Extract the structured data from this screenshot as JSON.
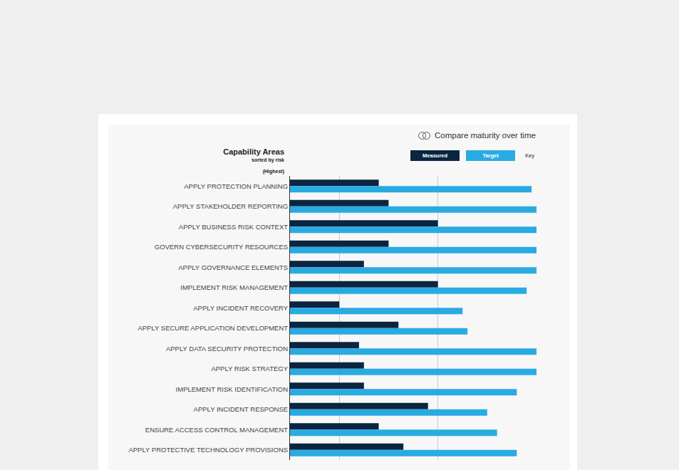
{
  "chart_data": {
    "type": "bar",
    "orientation": "horizontal",
    "title": "Capability Areas",
    "subtitle": "sorted by risk",
    "annotations": {
      "axis_start": "(Highest)",
      "legend_key": "Key",
      "toggle": "Compare maturity over time"
    },
    "categories": [
      "APPLY PROTECTION PLANNING",
      "APPLY STAKEHOLDER REPORTING",
      "APPLY BUSINESS RISK CONTEXT",
      "GOVERN CYBERSECURITY RESOURCES",
      "APPLY GOVERNANCE ELEMENTS",
      "IMPLEMENT RISK MANAGEMENT",
      "APPLY INCIDENT RECOVERY",
      "APPLY SECURE APPLICATION DEVELOPMENT",
      "APPLY DATA SECURITY PROTECTION",
      "APPLY RISK STRATEGY",
      "IMPLEMENT RISK IDENTIFICATION",
      "APPLY INCIDENT RESPONSE",
      "ENSURE ACCESS CONTROL MANAGEMENT",
      "APPLY PROTECTIVE TECHNOLOGY PROVISIONS"
    ],
    "series": [
      {
        "name": "Measured",
        "color": "#0b2540",
        "values": [
          1.8,
          2.0,
          3.0,
          2.0,
          1.5,
          3.0,
          1.0,
          2.2,
          1.4,
          1.5,
          1.5,
          2.8,
          1.8,
          2.3
        ]
      },
      {
        "name": "Target",
        "color": "#29abe2",
        "values": [
          4.9,
          5.0,
          5.0,
          5.0,
          5.0,
          4.8,
          3.5,
          3.6,
          5.0,
          5.0,
          4.6,
          4.0,
          4.2,
          4.6
        ]
      }
    ],
    "xlim": [
      0,
      5
    ],
    "xticks": [
      0,
      1,
      3,
      5
    ],
    "grid": true,
    "tick_labels": "y",
    "legend": "upper right"
  }
}
